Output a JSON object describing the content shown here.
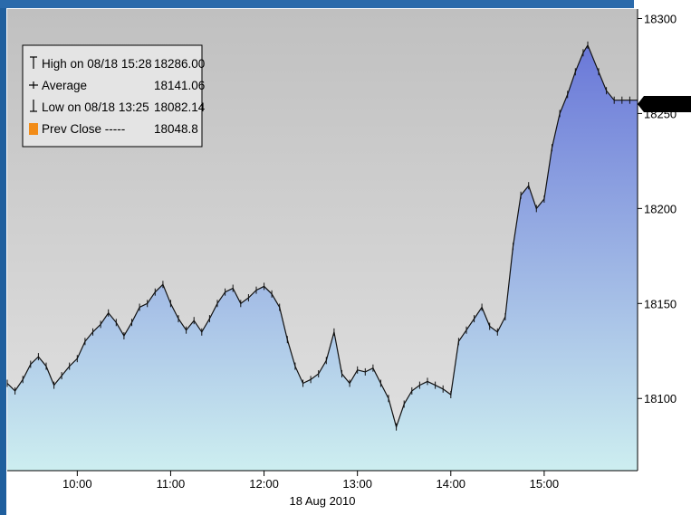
{
  "colors": {
    "plot_bg_top": "#c0c0c0",
    "plot_bg_bottom": "#e2e2e2",
    "area_top": "#6a78d8",
    "area_bottom": "#cdeef0",
    "price_line": "#111111",
    "last_price_bg": "#000000",
    "last_price_text": "#ffffff",
    "prev_close_marker": "#f28c18",
    "frame_accent": "#1f5f9e"
  },
  "chart_data": {
    "type": "area",
    "title": "",
    "xlabel": "18 Aug 2010",
    "ylabel": "",
    "xlim": [
      "09:15",
      "16:00"
    ],
    "ylim": [
      18062,
      18305
    ],
    "x_ticks": [
      "10:00",
      "11:00",
      "12:00",
      "13:00",
      "14:00",
      "15:00"
    ],
    "y_ticks": [
      18100,
      18150,
      18200,
      18250,
      18300
    ],
    "last_price": "18257.12",
    "legend": {
      "placement": "top-left",
      "entries": [
        {
          "icon": "high-marker-icon",
          "label": "High on 08/18 15:28",
          "value": "18286.00"
        },
        {
          "icon": "average-marker-icon",
          "label": "Average",
          "value": "18141.06"
        },
        {
          "icon": "low-marker-icon",
          "label": "Low on 08/18 13:25",
          "value": "18082.14"
        },
        {
          "icon": "prev-close-marker-icon",
          "label": "Prev Close -----",
          "value": "18048.8"
        }
      ]
    },
    "series": [
      {
        "x": [
          "09:15",
          "09:20",
          "09:25",
          "09:30",
          "09:35",
          "09:40",
          "09:45",
          "09:50",
          "09:55",
          "10:00",
          "10:05",
          "10:10",
          "10:15",
          "10:20",
          "10:25",
          "10:30",
          "10:35",
          "10:40",
          "10:45",
          "10:50",
          "10:55",
          "11:00",
          "11:05",
          "11:10",
          "11:15",
          "11:20",
          "11:25",
          "11:30",
          "11:35",
          "11:40",
          "11:45",
          "11:50",
          "11:55",
          "12:00",
          "12:05",
          "12:10",
          "12:15",
          "12:20",
          "12:25",
          "12:30",
          "12:35",
          "12:40",
          "12:45",
          "12:50",
          "12:55",
          "13:00",
          "13:05",
          "13:10",
          "13:15",
          "13:20",
          "13:25",
          "13:30",
          "13:35",
          "13:40",
          "13:45",
          "13:50",
          "13:55",
          "14:00",
          "14:05",
          "14:10",
          "14:15",
          "14:20",
          "14:25",
          "14:30",
          "14:35",
          "14:40",
          "14:45",
          "14:50",
          "14:55",
          "15:00",
          "15:05",
          "15:10",
          "15:15",
          "15:20",
          "15:25",
          "15:28",
          "15:35",
          "15:40",
          "15:45",
          "15:50",
          "15:55",
          "16:00"
        ],
        "values": [
          18108,
          18104,
          18110,
          18118,
          18122,
          18117,
          18107,
          18112,
          18117,
          18121,
          18130,
          18135,
          18139,
          18145,
          18140,
          18133,
          18140,
          18148,
          18150,
          18156,
          18160,
          18150,
          18142,
          18136,
          18141,
          18135,
          18142,
          18150,
          18156,
          18158,
          18150,
          18153,
          18157,
          18159,
          18155,
          18148,
          18131,
          18117,
          18108,
          18110,
          18113,
          18120,
          18135,
          18113,
          18108,
          18115,
          18114,
          18116,
          18108,
          18100,
          18085,
          18097,
          18104,
          18107,
          18109,
          18107,
          18105,
          18102,
          18130,
          18136,
          18142,
          18148,
          18138,
          18135,
          18143,
          18180,
          18207,
          18212,
          18200,
          18205,
          18232,
          18250,
          18260,
          18272,
          18282,
          18286,
          18272,
          18262,
          18257,
          18257,
          18257,
          18257
        ]
      }
    ]
  }
}
